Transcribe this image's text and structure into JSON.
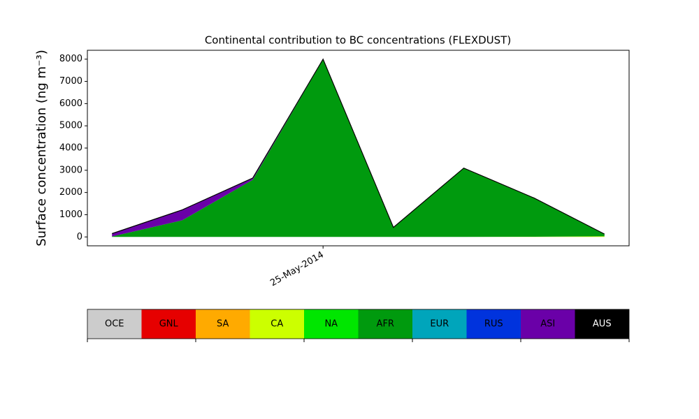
{
  "chart_data": {
    "type": "stacked_area",
    "title": "Continental contribution to BC concentrations (FLEXDUST)",
    "y_label": "Surface concentration (ng m⁻³)",
    "categories": [
      null,
      null,
      null,
      "25-May-2014",
      null,
      null,
      null,
      null
    ],
    "series": [
      {
        "name": "OCE",
        "color": "#cccccc",
        "values": [
          0,
          0,
          0,
          0,
          0,
          0,
          0,
          0
        ]
      },
      {
        "name": "GNL",
        "color": "#e60000",
        "values": [
          0,
          0,
          0,
          0,
          0,
          0,
          0,
          0
        ]
      },
      {
        "name": "SA",
        "color": "#ffaa00",
        "values": [
          0,
          0,
          0,
          0,
          0,
          0,
          0,
          0
        ]
      },
      {
        "name": "CA",
        "color": "#ccff00",
        "values": [
          0,
          0,
          0,
          0,
          0,
          0,
          10,
          30
        ]
      },
      {
        "name": "NA",
        "color": "#00e600",
        "values": [
          0,
          0,
          0,
          0,
          0,
          0,
          0,
          0
        ]
      },
      {
        "name": "AFR",
        "color": "#009a0e",
        "values": [
          20,
          750,
          2570,
          7980,
          430,
          3100,
          1740,
          100
        ]
      },
      {
        "name": "EUR",
        "color": "#00a5bb",
        "values": [
          0,
          0,
          0,
          0,
          0,
          0,
          0,
          0
        ]
      },
      {
        "name": "RUS",
        "color": "#0033dd",
        "values": [
          0,
          0,
          0,
          0,
          0,
          0,
          0,
          0
        ]
      },
      {
        "name": "ASI",
        "color": "#6a00a8",
        "values": [
          130,
          470,
          80,
          20,
          0,
          0,
          0,
          0
        ]
      },
      {
        "name": "AUS",
        "color": "#000000",
        "values": [
          0,
          0,
          0,
          0,
          0,
          0,
          0,
          0
        ]
      }
    ],
    "ylim": [
      -400,
      8400
    ],
    "yticks": [
      0,
      1000,
      2000,
      3000,
      4000,
      5000,
      6000,
      7000,
      8000
    ]
  }
}
